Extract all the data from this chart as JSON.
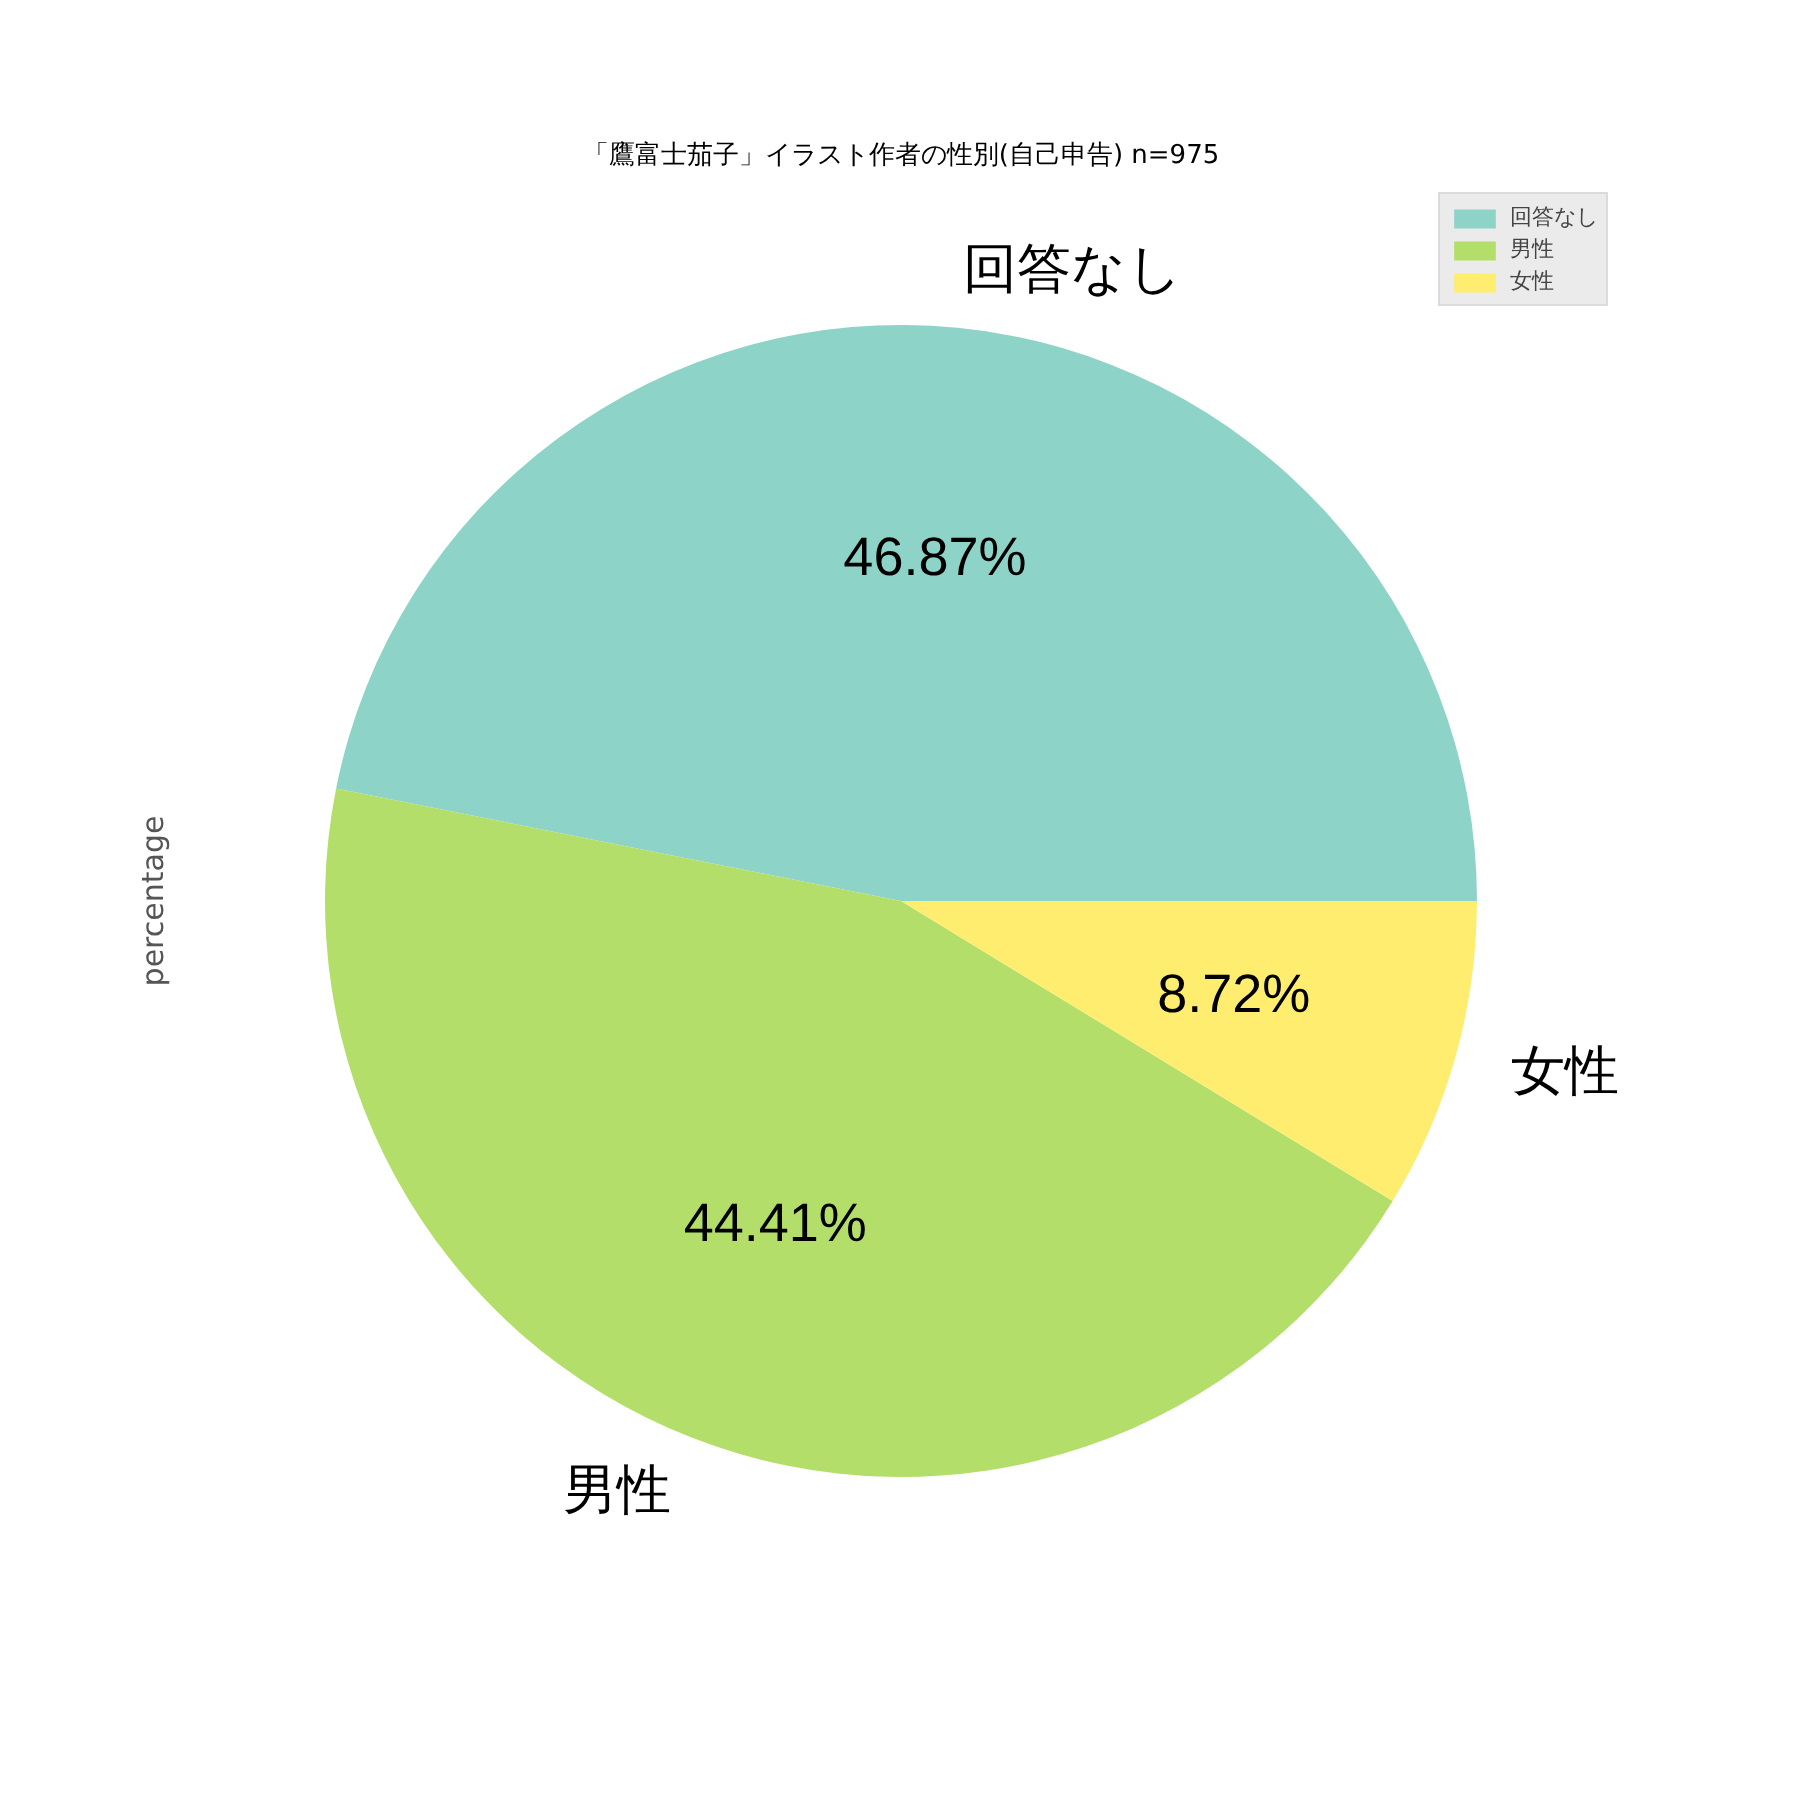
{
  "chart_data": {
    "type": "pie",
    "title": "「鷹富士茄子」イラスト作者の性別(自己申告) n=975",
    "ylabel": "percentage",
    "categories": [
      "回答なし",
      "男性",
      "女性"
    ],
    "values": [
      46.87,
      44.41,
      8.72
    ],
    "colors": [
      "#8dd3c7",
      "#b3de69",
      "#ffed6f"
    ],
    "value_labels": [
      "46.87%",
      "44.41%",
      "8.72%"
    ],
    "legend": "top right"
  }
}
